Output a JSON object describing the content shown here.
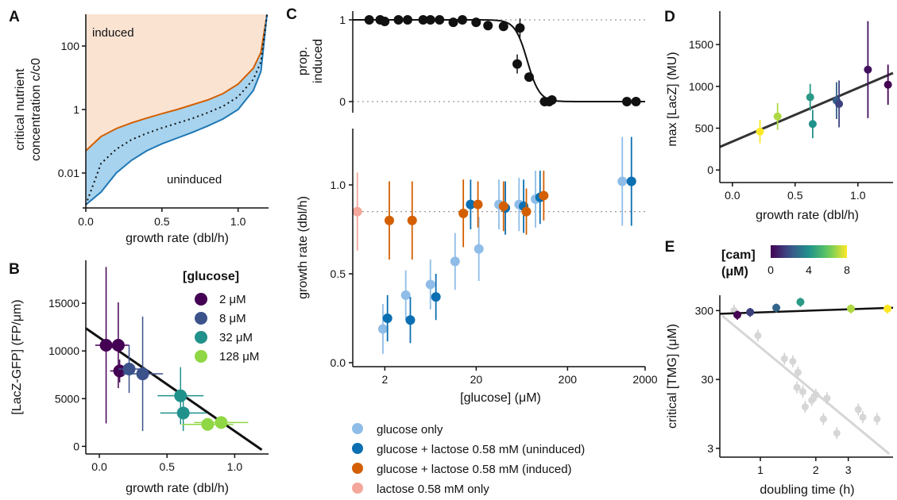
{
  "panels": {
    "A": {
      "letter": "A",
      "type": "area",
      "xlabel": "growth rate (dbl/h)",
      "ylabel_line1": "critical nutrient",
      "ylabel_line2": "concentration c/c0",
      "xticks": [
        "0.0",
        "0.5",
        "1.0"
      ],
      "yticks": [
        "0.01",
        "1",
        "100"
      ],
      "label_induced": "induced",
      "label_uninduced": "uninduced",
      "colors": {
        "upper": "#d35f00",
        "lower": "#1f77b4",
        "band": "#a7d3ee",
        "induced": "#fbe3d2"
      },
      "xlim": [
        0,
        1.2
      ],
      "ylim_log10": [
        -3,
        3
      ]
    },
    "B": {
      "letter": "B",
      "type": "scatter",
      "xlabel": "growth rate (dbl/h)",
      "ylabel": "[LacZ-GFP] (FP/μm)",
      "xticks": [
        "0.0",
        "0.5",
        "1.0"
      ],
      "yticks": [
        "0",
        "5000",
        "10000",
        "15000"
      ],
      "legend_title": "[glucose]",
      "legend": [
        {
          "label": "2 μM",
          "color": "#440154"
        },
        {
          "label": "8 μM",
          "color": "#3b528b"
        },
        {
          "label": "32 μM",
          "color": "#21918c"
        },
        {
          "label": "128 μM",
          "color": "#8fd744"
        }
      ],
      "xlim": [
        -0.1,
        1.25
      ],
      "ylim": [
        -800,
        19500
      ]
    },
    "C": {
      "letter": "C",
      "top_ylabel_line1": "prop.",
      "top_ylabel_line2": "induced",
      "top_yticks": [
        "0",
        "1"
      ],
      "ylabel": "growth rate (dbl/h)",
      "xlabel": "[glucose] (μM)",
      "xticks": [
        "2",
        "20",
        "200",
        "2000"
      ],
      "yticks": [
        "0.0",
        "0.5",
        "1.0"
      ],
      "legend": [
        {
          "label": "glucose only",
          "color": "#8fbde8"
        },
        {
          "label": "glucose + lactose 0.58 mM (uninduced)",
          "color": "#0b6fb2"
        },
        {
          "label": "glucose + lactose 0.58 mM (induced)",
          "color": "#d35f00"
        },
        {
          "label": "lactose 0.58 mM only",
          "color": "#f4a79a"
        }
      ]
    },
    "D": {
      "letter": "D",
      "type": "scatter",
      "xlabel": "growth rate (dbl/h)",
      "ylabel": "max [LacZ] (MU)",
      "xticks": [
        "0.0",
        "0.5",
        "1.0"
      ],
      "yticks": [
        "0",
        "500",
        "1000",
        "1500"
      ],
      "xlim": [
        -0.1,
        1.28
      ],
      "ylim": [
        -150,
        1900
      ]
    },
    "E": {
      "letter": "E",
      "type": "scatter",
      "xlabel": "doubling time (h)",
      "ylabel": "critical [TMG] (μM)",
      "xticks": [
        "1",
        "2",
        "3"
      ],
      "yticks": [
        "3",
        "30",
        "300"
      ],
      "colorbar_title_line1": "[cam]",
      "colorbar_title_line2": "(μM)",
      "colorbar_ticks": [
        "0",
        "4",
        "8"
      ]
    }
  },
  "chart_data": [
    {
      "panel": "A",
      "type": "area",
      "x": [
        0.0,
        0.1,
        0.2,
        0.3,
        0.4,
        0.5,
        0.6,
        0.7,
        0.8,
        0.9,
        1.0,
        1.1,
        1.15,
        1.19
      ],
      "series": [
        {
          "name": "upper",
          "y_log10": [
            -1.3,
            -0.85,
            -0.6,
            -0.42,
            -0.27,
            -0.13,
            0.0,
            0.15,
            0.3,
            0.5,
            0.8,
            1.3,
            1.8,
            3.0
          ]
        },
        {
          "name": "middle",
          "y_log10": [
            -3.0,
            -1.7,
            -1.25,
            -0.95,
            -0.75,
            -0.58,
            -0.43,
            -0.28,
            -0.1,
            0.1,
            0.4,
            0.95,
            1.5,
            3.0
          ]
        },
        {
          "name": "lower",
          "y_log10": [
            -3.0,
            -2.6,
            -2.0,
            -1.6,
            -1.3,
            -1.08,
            -0.9,
            -0.72,
            -0.52,
            -0.3,
            0.0,
            0.6,
            1.2,
            3.0
          ]
        }
      ]
    },
    {
      "panel": "B",
      "type": "scatter",
      "points": [
        {
          "x": 0.05,
          "y": 10600,
          "xerr": 0.08,
          "yerr": 8200,
          "group": 0
        },
        {
          "x": 0.14,
          "y": 10600,
          "xerr": 0.08,
          "yerr": 4500,
          "group": 0
        },
        {
          "x": 0.15,
          "y": 7900,
          "xerr": 0.07,
          "yerr": 1200,
          "group": 0
        },
        {
          "x": 0.22,
          "y": 8100,
          "xerr": 0.08,
          "yerr": 2500,
          "group": 1
        },
        {
          "x": 0.32,
          "y": 7600,
          "xerr": 0.15,
          "yerr": 6000,
          "group": 1
        },
        {
          "x": 0.6,
          "y": 5300,
          "xerr": 0.17,
          "yerr": 3000,
          "group": 2
        },
        {
          "x": 0.62,
          "y": 3500,
          "xerr": 0.17,
          "yerr": 1900,
          "group": 2
        },
        {
          "x": 0.8,
          "y": 2300,
          "xerr": 0.19,
          "yerr": 500,
          "group": 3
        },
        {
          "x": 0.9,
          "y": 2500,
          "xerr": 0.2,
          "yerr": 600,
          "group": 3
        }
      ],
      "fit": {
        "intercept": 11400,
        "slope": -9800
      }
    },
    {
      "panel": "C-top",
      "type": "scatter",
      "x_log10": [
        0.13,
        0.25,
        0.3,
        0.45,
        0.55,
        0.72,
        0.8,
        0.9,
        1.05,
        1.15,
        1.3,
        1.43,
        1.6,
        1.75,
        1.78,
        1.88,
        2.05,
        2.1,
        2.13,
        2.95,
        3.05
      ],
      "y": [
        1,
        1,
        0.98,
        1,
        1,
        1,
        1,
        1,
        0.97,
        1,
        0.97,
        0.93,
        0.92,
        0.46,
        0.9,
        0.3,
        0.0,
        0.0,
        0.02,
        0.0,
        0.0
      ],
      "sigmoid": {
        "center_log10": 1.86,
        "steepness": 15
      },
      "guides": [
        0,
        1
      ]
    },
    {
      "panel": "C-bottom",
      "type": "scatter",
      "series": [
        {
          "name": "glucose only",
          "x_log10": [
            0.28,
            0.53,
            0.8,
            1.07,
            1.33,
            1.55,
            1.77,
            1.95,
            2.9
          ],
          "y": [
            0.19,
            0.38,
            0.44,
            0.57,
            0.64,
            0.89,
            0.89,
            0.92,
            1.02
          ],
          "err": [
            0.14,
            0.14,
            0.14,
            0.16,
            0.18,
            0.14,
            0.15,
            0.16,
            0.25
          ]
        },
        {
          "name": "glucose + lactose 0.58 mM (uninduced)",
          "x_log10": [
            0.33,
            0.58,
            0.86,
            1.24,
            1.62,
            1.82,
            2.0,
            3.0
          ],
          "y": [
            0.25,
            0.24,
            0.37,
            0.89,
            0.87,
            0.88,
            0.93,
            1.02
          ],
          "err": [
            0.13,
            0.13,
            0.13,
            0.14,
            0.15,
            0.15,
            0.15,
            0.25
          ]
        },
        {
          "name": "glucose + lactose 0.58 mM (induced)",
          "x_log10": [
            0.35,
            0.6,
            1.16,
            1.32,
            1.6,
            1.85,
            2.04
          ],
          "y": [
            0.8,
            0.8,
            0.84,
            0.89,
            0.88,
            0.85,
            0.94
          ],
          "err": [
            0.22,
            0.22,
            0.19,
            0.13,
            0.14,
            0.13,
            0.14
          ]
        },
        {
          "name": "lactose 0.58 mM only",
          "x_log10": [
            0.0
          ],
          "y": [
            0.85
          ],
          "err": [
            0.22
          ]
        }
      ],
      "reference_line_y": 0.85
    },
    {
      "panel": "D",
      "type": "scatter",
      "points": [
        {
          "x": 0.22,
          "y": 460,
          "err": 140,
          "c": 8
        },
        {
          "x": 0.36,
          "y": 640,
          "err": 160,
          "c": 7
        },
        {
          "x": 0.62,
          "y": 870,
          "err": 160,
          "c": 4.3
        },
        {
          "x": 0.64,
          "y": 550,
          "err": 170,
          "c": 4.0
        },
        {
          "x": 0.83,
          "y": 830,
          "err": 220,
          "c": 2.4
        },
        {
          "x": 0.85,
          "y": 790,
          "err": 280,
          "c": 1.6
        },
        {
          "x": 1.08,
          "y": 1200,
          "err": 580,
          "c": 0.4
        },
        {
          "x": 1.24,
          "y": 1020,
          "err": 240,
          "c": 0
        }
      ],
      "fit": {
        "intercept": 340,
        "slope": 640
      }
    },
    {
      "panel": "E",
      "type": "scatter",
      "points": [
        {
          "x": 0.75,
          "y": 260,
          "c": 0
        },
        {
          "x": 0.88,
          "y": 285,
          "c": 1.5
        },
        {
          "x": 1.22,
          "y": 330,
          "c": 2.6
        },
        {
          "x": 1.65,
          "y": 400,
          "c": 4.3
        },
        {
          "x": 3.1,
          "y": 320,
          "c": 7
        },
        {
          "x": 4.9,
          "y": 320,
          "c": 8
        }
      ],
      "grey_points": [
        {
          "x": 0.72,
          "y": 300
        },
        {
          "x": 0.97,
          "y": 130
        },
        {
          "x": 1.35,
          "y": 60
        },
        {
          "x": 1.5,
          "y": 55
        },
        {
          "x": 1.58,
          "y": 23
        },
        {
          "x": 1.6,
          "y": 38
        },
        {
          "x": 1.7,
          "y": 20
        },
        {
          "x": 1.75,
          "y": 12
        },
        {
          "x": 1.9,
          "y": 15
        },
        {
          "x": 2.0,
          "y": 18
        },
        {
          "x": 2.2,
          "y": 8
        },
        {
          "x": 2.3,
          "y": 16
        },
        {
          "x": 2.6,
          "y": 5
        },
        {
          "x": 3.4,
          "y": 11
        },
        {
          "x": 3.6,
          "y": 8.5
        },
        {
          "x": 4.3,
          "y": 8
        }
      ],
      "fit_color": {
        "y_at_0_7": 270,
        "y_at_5": 330
      },
      "fit_grey": {
        "y_at_0_7": 220,
        "y_at_5": 2.5
      },
      "xlim_log10": [
        -0.22,
        0.72
      ],
      "ylim_log10": [
        0.35,
        2.7
      ]
    }
  ]
}
